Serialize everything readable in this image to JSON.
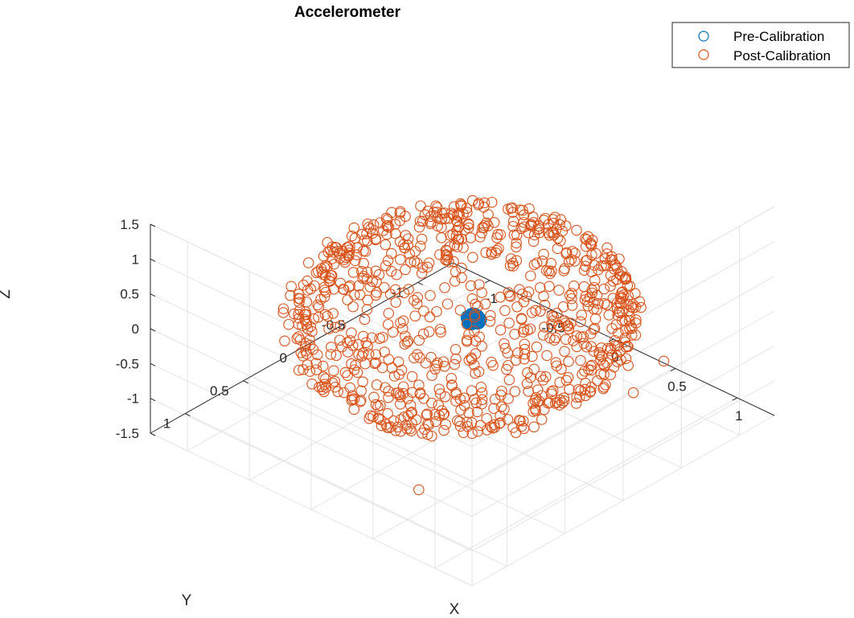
{
  "chart_data": {
    "type": "scatter3d",
    "title": "Accelerometer",
    "xlabel": "X",
    "ylabel": "Y",
    "zlabel": "Z",
    "xlim": [
      -1.3,
      1.3
    ],
    "ylim": [
      -1.3,
      1.3
    ],
    "zlim": [
      -1.5,
      1.5
    ],
    "xticks": [
      "-1",
      "-0.5",
      "0",
      "0.5",
      "1"
    ],
    "yticks": [
      "-1",
      "-0.5",
      "0",
      "0.5",
      "1"
    ],
    "zticks": [
      "-1.5",
      "-1",
      "-0.5",
      "0",
      "0.5",
      "1",
      "1.5"
    ],
    "grid": true,
    "legend_position": "outside-top-right",
    "series": [
      {
        "name": "Pre-Calibration",
        "color": "#0072BD",
        "marker": "open-circle",
        "description": "tight cluster centred near the origin",
        "points": [
          [
            0.05,
            -0.04,
            0.02
          ],
          [
            0.07,
            -0.02,
            0.03
          ],
          [
            0.04,
            -0.06,
            0.01
          ],
          [
            0.06,
            -0.03,
            -0.01
          ],
          [
            0.08,
            -0.05,
            0.02
          ],
          [
            0.05,
            -0.01,
            0.04
          ],
          [
            0.03,
            -0.04,
            0.0
          ],
          [
            0.06,
            -0.06,
            0.03
          ],
          [
            0.07,
            -0.03,
            0.05
          ],
          [
            0.04,
            -0.02,
            -0.02
          ],
          [
            0.09,
            -0.04,
            0.01
          ],
          [
            0.05,
            -0.05,
            0.06
          ],
          [
            0.02,
            -0.03,
            0.02
          ],
          [
            0.06,
            -0.01,
            0.0
          ],
          [
            0.08,
            -0.02,
            0.04
          ],
          [
            0.05,
            -0.07,
            0.02
          ],
          [
            0.03,
            -0.05,
            0.04
          ],
          [
            0.07,
            -0.06,
            -0.01
          ],
          [
            0.04,
            -0.03,
            0.05
          ],
          [
            0.06,
            -0.04,
            0.03
          ],
          [
            0.09,
            -0.03,
            0.02
          ],
          [
            0.05,
            -0.02,
            0.01
          ],
          [
            0.07,
            -0.05,
            0.05
          ],
          [
            0.04,
            -0.04,
            -0.01
          ],
          [
            0.06,
            -0.02,
            0.03
          ],
          [
            0.08,
            -0.06,
            0.01
          ],
          [
            0.05,
            -0.03,
            0.06
          ],
          [
            0.03,
            -0.06,
            0.02
          ],
          [
            0.07,
            -0.01,
            0.02
          ],
          [
            0.06,
            -0.05,
            0.0
          ],
          [
            0.05,
            -0.04,
            0.03
          ],
          [
            0.06,
            -0.03,
            0.02
          ]
        ]
      },
      {
        "name": "Post-Calibration",
        "color": "#D95319",
        "marker": "open-circle",
        "description": "points distributed over a unit sphere (radius ~1) centred at the origin",
        "radius": 1.0,
        "count": 900
      }
    ]
  }
}
